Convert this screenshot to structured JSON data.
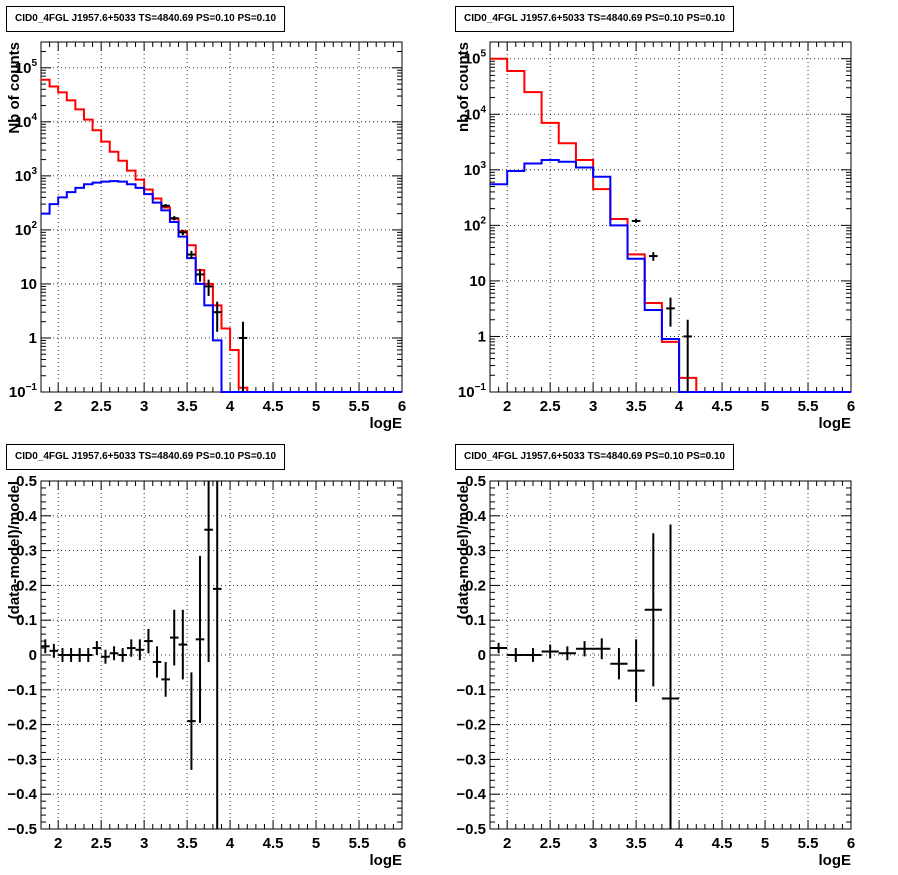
{
  "chart_data": [
    {
      "type": "line",
      "title": "CID0_4FGL J1957.6+5033 TS=4840.69 PS=0.10 PS=0.10",
      "xlabel": "logE",
      "ylabel": "Nb of counts",
      "xlim": [
        1.8,
        6.0
      ],
      "ylim": [
        0.1,
        300000
      ],
      "yscale": "log",
      "grid": true,
      "x_ticks": [
        "2",
        "2.5",
        "3",
        "3.5",
        "4",
        "4.5",
        "5",
        "5.5",
        "6"
      ],
      "y_ticks": [
        {
          "v": 0.1,
          "t": "10",
          "sup": "−1"
        },
        {
          "v": 1,
          "t": "1",
          "sup": ""
        },
        {
          "v": 10,
          "t": "10",
          "sup": ""
        },
        {
          "v": 100,
          "t": "10",
          "sup": "2"
        },
        {
          "v": 1000,
          "t": "10",
          "sup": "3"
        },
        {
          "v": 10000,
          "t": "10",
          "sup": "4"
        },
        {
          "v": 100000,
          "t": "10",
          "sup": "5"
        }
      ],
      "bin_edges": [
        1.8,
        1.9,
        2.0,
        2.1,
        2.2,
        2.3,
        2.4,
        2.5,
        2.6,
        2.7,
        2.8,
        2.9,
        3.0,
        3.1,
        3.2,
        3.3,
        3.4,
        3.5,
        3.6,
        3.7,
        3.8,
        3.9,
        4.0,
        4.1,
        4.2,
        4.3,
        4.4,
        4.5,
        4.6,
        4.7,
        4.8,
        4.9,
        5.0,
        5.1,
        5.2,
        5.3,
        5.4,
        5.5,
        5.6,
        5.7,
        5.8,
        5.9,
        6.0
      ],
      "series": [
        {
          "color": "#ff0000",
          "values": [
            60000,
            45000,
            35000,
            25000,
            17000,
            11000,
            7000,
            4300,
            2800,
            1900,
            1250,
            850,
            560,
            380,
            260,
            160,
            95,
            52,
            18,
            10,
            4,
            1.5,
            0.6,
            0.12,
            0.05,
            0,
            0,
            0,
            0,
            0,
            0,
            0,
            0,
            0,
            0,
            0,
            0,
            0,
            0,
            0,
            0,
            0
          ]
        },
        {
          "color": "#0000ff",
          "values": [
            200,
            300,
            400,
            500,
            600,
            700,
            750,
            780,
            800,
            780,
            700,
            600,
            460,
            320,
            230,
            140,
            75,
            30,
            10,
            4,
            0.9,
            0.08,
            0.05,
            0,
            0,
            0,
            0,
            0,
            0,
            0,
            0,
            0,
            0,
            0,
            0,
            0,
            0,
            0,
            0,
            0,
            0,
            0
          ]
        }
      ],
      "points": [
        {
          "x": 3.25,
          "y": 280,
          "ylo": 260,
          "yhi": 300
        },
        {
          "x": 3.35,
          "y": 165,
          "ylo": 150,
          "yhi": 180
        },
        {
          "x": 3.45,
          "y": 90,
          "ylo": 80,
          "yhi": 100
        },
        {
          "x": 3.55,
          "y": 35,
          "ylo": 29,
          "yhi": 41
        },
        {
          "x": 3.65,
          "y": 15,
          "ylo": 11,
          "yhi": 19
        },
        {
          "x": 3.75,
          "y": 9,
          "ylo": 6,
          "yhi": 12
        },
        {
          "x": 3.85,
          "y": 3,
          "ylo": 1.3,
          "yhi": 4.7
        },
        {
          "x": 4.15,
          "y": 1,
          "ylo": 0.1,
          "yhi": 2
        }
      ]
    },
    {
      "type": "line",
      "title": "CID0_4FGL J1957.6+5033 TS=4840.69 PS=0.10 PS=0.10",
      "xlabel": "logE",
      "ylabel": "nb of counts",
      "xlim": [
        1.8,
        6.0
      ],
      "ylim": [
        0.1,
        200000
      ],
      "yscale": "log",
      "grid": true,
      "x_ticks": [
        "2",
        "2.5",
        "3",
        "3.5",
        "4",
        "4.5",
        "5",
        "5.5",
        "6"
      ],
      "y_ticks": [
        {
          "v": 0.1,
          "t": "10",
          "sup": "−1"
        },
        {
          "v": 1,
          "t": "1",
          "sup": ""
        },
        {
          "v": 10,
          "t": "10",
          "sup": ""
        },
        {
          "v": 100,
          "t": "10",
          "sup": "2"
        },
        {
          "v": 1000,
          "t": "10",
          "sup": "3"
        },
        {
          "v": 10000,
          "t": "10",
          "sup": "4"
        },
        {
          "v": 100000,
          "t": "10",
          "sup": "5"
        }
      ],
      "bin_edges": [
        1.8,
        2.0,
        2.2,
        2.4,
        2.6,
        2.8,
        3.0,
        3.2,
        3.4,
        3.6,
        3.8,
        4.0,
        4.2,
        4.4,
        4.6,
        4.8,
        5.0,
        5.2,
        5.4,
        5.6,
        5.8,
        6.0
      ],
      "series": [
        {
          "color": "#ff0000",
          "values": [
            100000,
            60000,
            25000,
            7000,
            3000,
            1500,
            450,
            130,
            30,
            4,
            0.8,
            0.18,
            0.05,
            0,
            0,
            0,
            0,
            0,
            0,
            0,
            0
          ]
        },
        {
          "color": "#0000ff",
          "values": [
            550,
            950,
            1300,
            1500,
            1400,
            1100,
            750,
            100,
            25,
            3,
            0.9,
            0.05,
            0,
            0,
            0,
            0,
            0,
            0,
            0,
            0,
            0
          ]
        }
      ],
      "points": [
        {
          "x": 3.5,
          "y": 120,
          "ylo": 110,
          "yhi": 130
        },
        {
          "x": 3.7,
          "y": 28,
          "ylo": 23,
          "yhi": 33
        },
        {
          "x": 3.9,
          "y": 3.2,
          "ylo": 1.5,
          "yhi": 5
        },
        {
          "x": 4.1,
          "y": 1,
          "ylo": 0.1,
          "yhi": 2
        }
      ]
    },
    {
      "type": "scatter",
      "title": "CID0_4FGL J1957.6+5033 TS=4840.69 PS=0.10 PS=0.10",
      "xlabel": "logE",
      "ylabel": "(data-model)/model",
      "xlim": [
        1.8,
        6.0
      ],
      "ylim": [
        -0.5,
        0.5
      ],
      "grid": true,
      "x_ticks": [
        "2",
        "2.5",
        "3",
        "3.5",
        "4",
        "4.5",
        "5",
        "5.5",
        "6"
      ],
      "y_ticks": [
        "−0.5",
        "−0.4",
        "−0.3",
        "−0.2",
        "−0.1",
        "0",
        "0.1",
        "0.2",
        "0.3",
        "0.4",
        "0.5"
      ],
      "x_half_width": 0.05,
      "points": [
        {
          "x": 1.85,
          "y": 0.025,
          "yerr": 0.02
        },
        {
          "x": 1.95,
          "y": 0.012,
          "yerr": 0.02
        },
        {
          "x": 2.05,
          "y": 0.0,
          "yerr": 0.02
        },
        {
          "x": 2.15,
          "y": 0.0,
          "yerr": 0.02
        },
        {
          "x": 2.25,
          "y": 0.0,
          "yerr": 0.02
        },
        {
          "x": 2.35,
          "y": 0.0,
          "yerr": 0.02
        },
        {
          "x": 2.45,
          "y": 0.02,
          "yerr": 0.02
        },
        {
          "x": 2.55,
          "y": -0.005,
          "yerr": 0.02
        },
        {
          "x": 2.65,
          "y": 0.005,
          "yerr": 0.02
        },
        {
          "x": 2.75,
          "y": 0.0,
          "yerr": 0.02
        },
        {
          "x": 2.85,
          "y": 0.02,
          "yerr": 0.025
        },
        {
          "x": 2.95,
          "y": 0.015,
          "yerr": 0.03
        },
        {
          "x": 3.05,
          "y": 0.04,
          "yerr": 0.035
        },
        {
          "x": 3.15,
          "y": -0.02,
          "yerr": 0.045
        },
        {
          "x": 3.25,
          "y": -0.07,
          "yerr": 0.05
        },
        {
          "x": 3.35,
          "y": 0.05,
          "yerr": 0.08
        },
        {
          "x": 3.45,
          "y": 0.03,
          "yerr": 0.1
        },
        {
          "x": 3.55,
          "y": -0.19,
          "yerr": 0.14
        },
        {
          "x": 3.65,
          "y": 0.045,
          "yerr": 0.24
        },
        {
          "x": 3.75,
          "y": 0.36,
          "yerr": 0.38
        },
        {
          "x": 3.85,
          "y": 0.19,
          "yerr": 0.75
        }
      ]
    },
    {
      "type": "scatter",
      "title": "CID0_4FGL J1957.6+5033 TS=4840.69 PS=0.10 PS=0.10",
      "xlabel": "logE",
      "ylabel": "(data-model)/model",
      "xlim": [
        1.8,
        6.0
      ],
      "ylim": [
        -0.5,
        0.5
      ],
      "grid": true,
      "x_ticks": [
        "2",
        "2.5",
        "3",
        "3.5",
        "4",
        "4.5",
        "5",
        "5.5",
        "6"
      ],
      "y_ticks": [
        "−0.5",
        "−0.4",
        "−0.3",
        "−0.2",
        "−0.1",
        "0",
        "0.1",
        "0.2",
        "0.3",
        "0.4",
        "0.5"
      ],
      "x_half_width": 0.1,
      "points": [
        {
          "x": 1.9,
          "y": 0.02,
          "yerr": 0.015
        },
        {
          "x": 2.1,
          "y": 0.0,
          "yerr": 0.02
        },
        {
          "x": 2.3,
          "y": 0.0,
          "yerr": 0.02
        },
        {
          "x": 2.5,
          "y": 0.01,
          "yerr": 0.02
        },
        {
          "x": 2.7,
          "y": 0.005,
          "yerr": 0.02
        },
        {
          "x": 2.9,
          "y": 0.018,
          "yerr": 0.022
        },
        {
          "x": 3.1,
          "y": 0.018,
          "yerr": 0.03
        },
        {
          "x": 3.3,
          "y": -0.025,
          "yerr": 0.045
        },
        {
          "x": 3.5,
          "y": -0.045,
          "yerr": 0.09
        },
        {
          "x": 3.7,
          "y": 0.13,
          "yerr": 0.22
        },
        {
          "x": 3.9,
          "y": -0.125,
          "yerr": 0.5
        }
      ]
    }
  ]
}
